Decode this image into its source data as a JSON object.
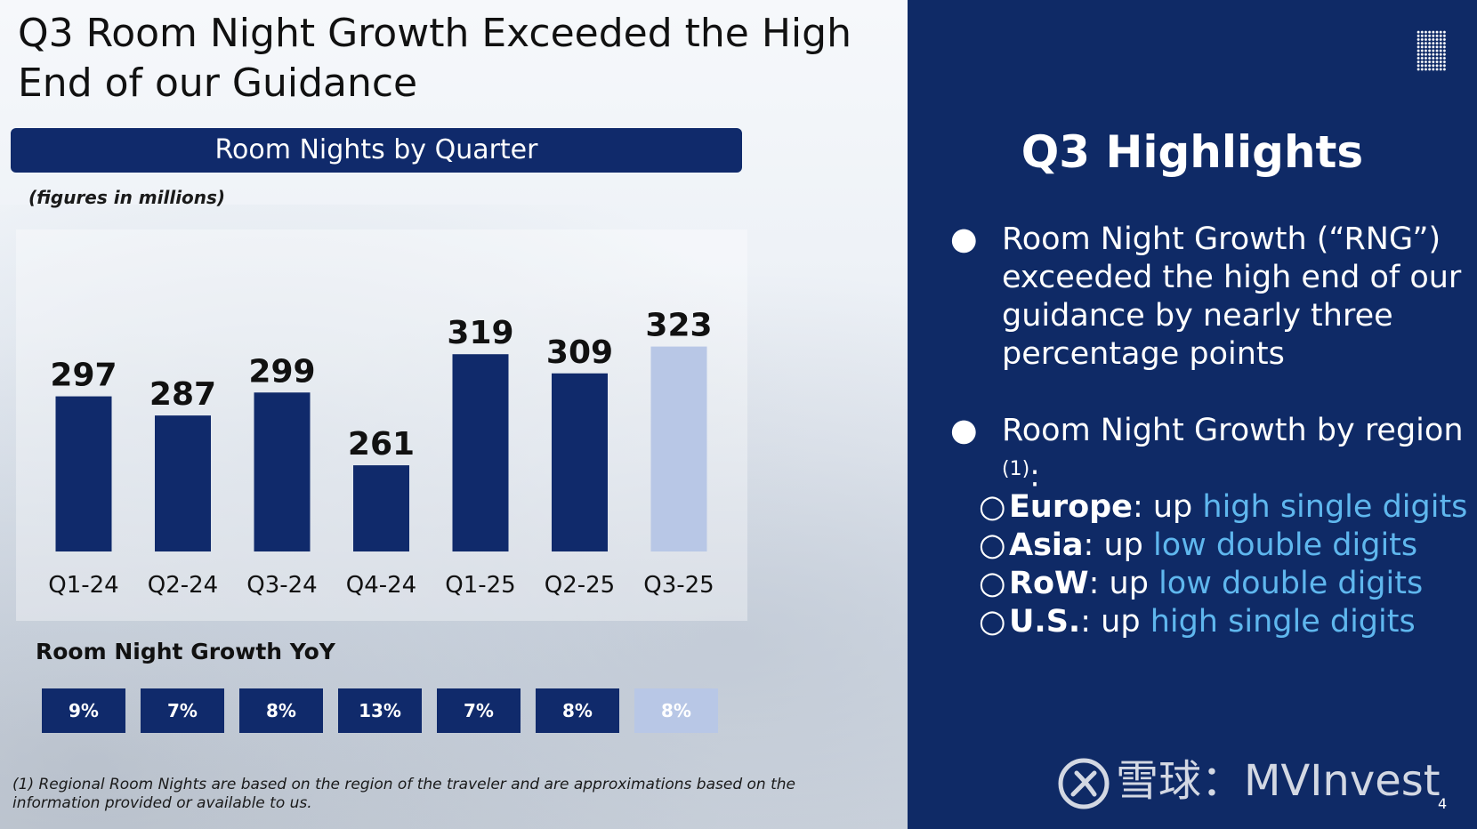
{
  "slide": {
    "title": "Q3 Room Night Growth Exceeded the High End of our Guidance",
    "chart_header": "Room Nights by Quarter",
    "figures_note": "(figures in millions)",
    "yoy_title": "Room Night Growth YoY",
    "footnote": "(1) Regional Room Nights are based on the region of the traveler and are approximations based on the information provided or available to us.",
    "page_number": "4"
  },
  "colors": {
    "navy": "#102a6b",
    "highlight_bar": "#b8c7e6",
    "panel_bg": "#0f2a66",
    "accent_text": "#5fb7ee"
  },
  "chart_data": {
    "type": "bar",
    "categories": [
      "Q1-24",
      "Q2-24",
      "Q3-24",
      "Q4-24",
      "Q1-25",
      "Q2-25",
      "Q3-25"
    ],
    "values": [
      297,
      287,
      299,
      261,
      319,
      309,
      323
    ],
    "highlight_index": 6,
    "data_labels": true,
    "grid": false,
    "ylim": [
      216,
      340
    ],
    "yoy_growth": [
      "9%",
      "7%",
      "8%",
      "13%",
      "7%",
      "8%",
      "8%"
    ]
  },
  "highlights": {
    "title": "Q3 Highlights",
    "bullet1": "Room Night Growth (“RNG”) exceeded the high end of our guidance by nearly three percentage points",
    "bullet2_text": "Room Night Growth by region",
    "bullet2_sup": "(1)",
    "bullet2_colon": ":",
    "regions": [
      {
        "name": "Europe",
        "mid": ": up ",
        "trend": "high single digits"
      },
      {
        "name": "Asia",
        "mid": ": up ",
        "trend": "low double digits"
      },
      {
        "name": "RoW",
        "mid": ": up ",
        "trend": "low double digits"
      },
      {
        "name": "U.S.",
        "mid": ": up ",
        "trend": "high single digits"
      }
    ]
  },
  "watermark": {
    "text": "雪球：MVInvest",
    "icon": "snowball-logo-icon"
  }
}
